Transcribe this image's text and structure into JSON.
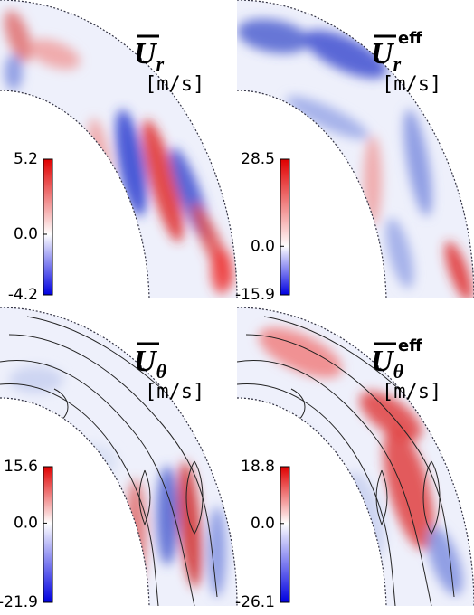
{
  "chart_data": [
    {
      "type": "contour",
      "symbol": "U",
      "subscript": "r",
      "unit": "[m/s]",
      "colors": [
        "#0000e0",
        "#ffffff",
        "#e00000"
      ],
      "zlim": [
        -4.2,
        5.2
      ],
      "zticks": [
        5.2,
        {
          "value": 0,
          "label": "0.0"
        },
        -4.2
      ]
    },
    {
      "type": "contour",
      "symbol": "U",
      "subscript": "r",
      "superscript": "eff",
      "unit": "[m/s]",
      "colors": [
        "#0000e0",
        "#ffffff",
        "#e00000"
      ],
      "zlim": [
        -15.9,
        28.5
      ],
      "zticks": [
        28.5,
        {
          "value": 0,
          "label": "0.0"
        },
        -15.9
      ]
    },
    {
      "type": "contour",
      "symbol": "U",
      "subscript": "θ",
      "unit": "[m/s]",
      "colors": [
        "#0000e0",
        "#ffffff",
        "#e00000"
      ],
      "zlim": [
        -21.9,
        15.6
      ],
      "zticks": [
        15.6,
        {
          "value": 0,
          "label": "0.0"
        },
        -21.9
      ]
    },
    {
      "type": "contour",
      "symbol": "U",
      "subscript": "θ",
      "superscript": "eff",
      "unit": "[m/s]",
      "colors": [
        "#0000e0",
        "#ffffff",
        "#e00000"
      ],
      "zlim": [
        -26.1,
        18.8
      ],
      "zticks": [
        18.8,
        {
          "value": 0,
          "label": "0.0"
        },
        -26.1
      ]
    }
  ]
}
